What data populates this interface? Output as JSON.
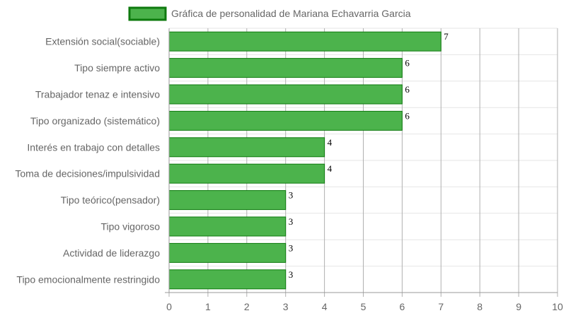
{
  "chart_data": {
    "type": "bar",
    "orientation": "horizontal",
    "categories": [
      "Extensión social(sociable)",
      "Tipo siempre activo",
      "Trabajador tenaz e intensivo",
      "Tipo organizado (sistemático)",
      "Interés en trabajo con detalles",
      "Toma de decisiones/impulsividad",
      "Tipo teórico(pensador)",
      "Tipo vigoroso",
      "Actividad de liderazgo",
      "Tipo emocionalmente restringido"
    ],
    "series": [
      {
        "name": "Gráfica de personalidad de Mariana Echavarria Garcia",
        "values": [
          7,
          6,
          6,
          6,
          4,
          4,
          3,
          3,
          3,
          3
        ]
      }
    ],
    "xlim": [
      0,
      10
    ],
    "x_ticks": [
      0,
      1,
      2,
      3,
      4,
      5,
      6,
      7,
      8,
      9,
      10
    ],
    "grid": true,
    "data_labels": true,
    "legend": {
      "position": "top-center"
    },
    "colors": {
      "bar_fill": "#4cb34c",
      "bar_border": "#0e7a0e",
      "grid_major": "#b0b0b0",
      "grid_minor": "#e6e6e6",
      "text": "#666666"
    }
  }
}
